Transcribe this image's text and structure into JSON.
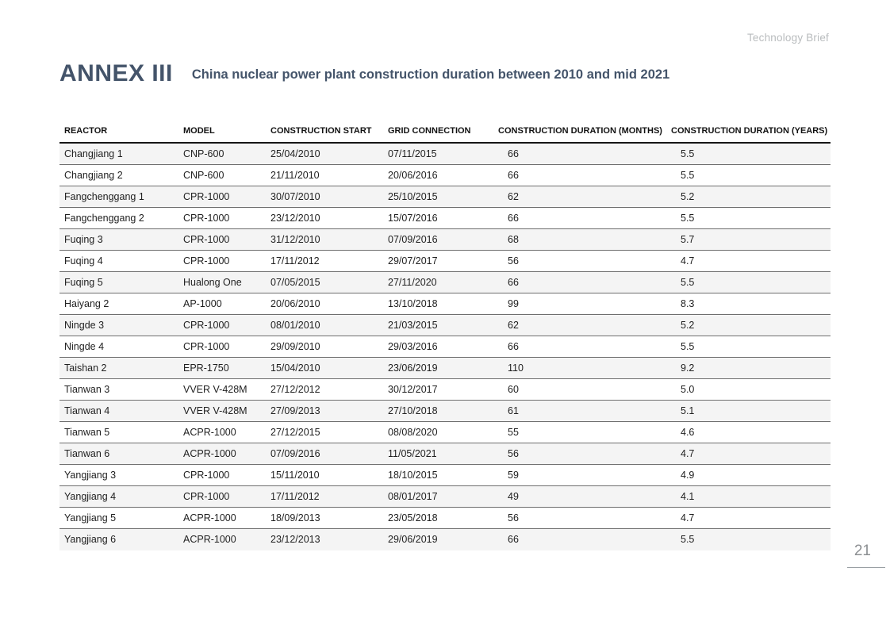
{
  "header": {
    "brand": "Technology Brief"
  },
  "title": {
    "annex": "ANNEX III",
    "subtitle": "China nuclear power plant construction duration between 2010 and mid 2021"
  },
  "table": {
    "columns": [
      "REACTOR",
      "MODEL",
      "CONSTRUCTION START",
      "GRID CONNECTION",
      "CONSTRUCTION DURATION (MONTHS)",
      "CONSTRUCTION DURATION (YEARS)"
    ],
    "rows": [
      [
        "Changjiang 1",
        "CNP-600",
        "25/04/2010",
        "07/11/2015",
        "66",
        "5.5"
      ],
      [
        "Changjiang 2",
        "CNP-600",
        "21/11/2010",
        "20/06/2016",
        "66",
        "5.5"
      ],
      [
        "Fangchenggang 1",
        "CPR-1000",
        "30/07/2010",
        "25/10/2015",
        "62",
        "5.2"
      ],
      [
        "Fangchenggang 2",
        "CPR-1000",
        "23/12/2010",
        "15/07/2016",
        "66",
        "5.5"
      ],
      [
        "Fuqing 3",
        "CPR-1000",
        "31/12/2010",
        "07/09/2016",
        "68",
        "5.7"
      ],
      [
        "Fuqing 4",
        "CPR-1000",
        "17/11/2012",
        "29/07/2017",
        "56",
        "4.7"
      ],
      [
        "Fuqing 5",
        "Hualong One",
        "07/05/2015",
        "27/11/2020",
        "66",
        "5.5"
      ],
      [
        "Haiyang 2",
        "AP-1000",
        "20/06/2010",
        "13/10/2018",
        "99",
        "8.3"
      ],
      [
        "Ningde 3",
        "CPR-1000",
        "08/01/2010",
        "21/03/2015",
        "62",
        "5.2"
      ],
      [
        "Ningde 4",
        "CPR-1000",
        "29/09/2010",
        "29/03/2016",
        "66",
        "5.5"
      ],
      [
        "Taishan 2",
        "EPR-1750",
        "15/04/2010",
        "23/06/2019",
        "110",
        "9.2"
      ],
      [
        "Tianwan 3",
        "VVER V-428M",
        "27/12/2012",
        "30/12/2017",
        "60",
        "5.0"
      ],
      [
        "Tianwan 4",
        "VVER V-428M",
        "27/09/2013",
        "27/10/2018",
        "61",
        "5.1"
      ],
      [
        "Tianwan 5",
        "ACPR-1000",
        "27/12/2015",
        "08/08/2020",
        "55",
        "4.6"
      ],
      [
        "Tianwan 6",
        "ACPR-1000",
        "07/09/2016",
        "11/05/2021",
        "56",
        "4.7"
      ],
      [
        "Yangjiang 3",
        "CPR-1000",
        "15/11/2010",
        "18/10/2015",
        "59",
        "4.9"
      ],
      [
        "Yangjiang 4",
        "CPR-1000",
        "17/11/2012",
        "08/01/2017",
        "49",
        "4.1"
      ],
      [
        "Yangjiang 5",
        "ACPR-1000",
        "18/09/2013",
        "23/05/2018",
        "56",
        "4.7"
      ],
      [
        "Yangjiang 6",
        "ACPR-1000",
        "23/12/2013",
        "29/06/2019",
        "66",
        "5.5"
      ]
    ]
  },
  "footer": {
    "page_number": "21"
  },
  "colors": {
    "title_accent": "#44546a",
    "stripe": "#f4f4f4",
    "header_rule": "#161616",
    "row_rule": "#6e6e6e",
    "muted_text": "#b9bcbe"
  }
}
